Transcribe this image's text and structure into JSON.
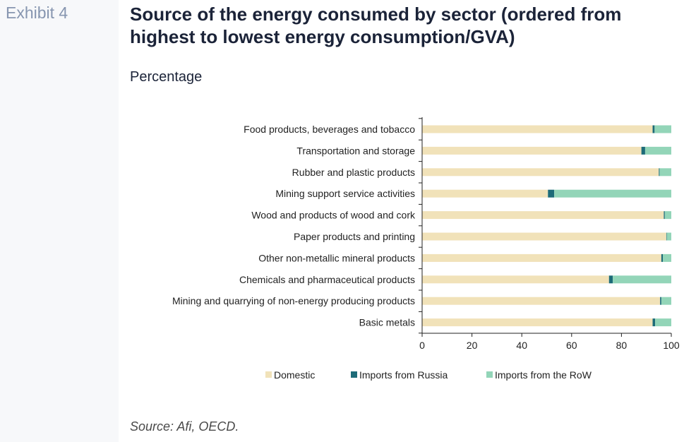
{
  "exhibit_label": "Exhibit 4",
  "title": "Source of the energy consumed by sector (ordered from highest to lowest energy consumption/GVA)",
  "subtitle": "Percentage",
  "source": "Source: Afi, OECD.",
  "chart_data": {
    "type": "bar",
    "orientation": "horizontal",
    "stacked": true,
    "categories": [
      "Food products, beverages and tobacco",
      "Transportation and storage",
      "Rubber and plastic products",
      "Mining support service activities",
      "Wood and products of wood and cork",
      "Paper products and printing",
      "Other non-metallic mineral products",
      "Chemicals and pharmaceutical products",
      "Mining and quarrying of non-energy producing products",
      "Basic metals"
    ],
    "series": [
      {
        "name": "Domestic",
        "color": "#f1e2b9",
        "values": [
          92.5,
          88,
          95,
          50.5,
          97,
          98,
          96,
          75,
          95.5,
          92.5
        ]
      },
      {
        "name": "Imports from Russia",
        "color": "#1d6b78",
        "values": [
          0.8,
          1.5,
          0.3,
          2.5,
          0.4,
          0.2,
          0.6,
          1.5,
          0.5,
          1.0
        ]
      },
      {
        "name": "Imports from the RoW",
        "color": "#93d5b8",
        "values": [
          6.7,
          10.5,
          4.7,
          47,
          2.6,
          1.8,
          3.4,
          23.5,
          4.0,
          6.5
        ]
      }
    ],
    "xlim": [
      0,
      100
    ],
    "xticks": [
      0,
      20,
      40,
      60,
      80,
      100
    ],
    "grid": false,
    "legend_position": "bottom"
  }
}
